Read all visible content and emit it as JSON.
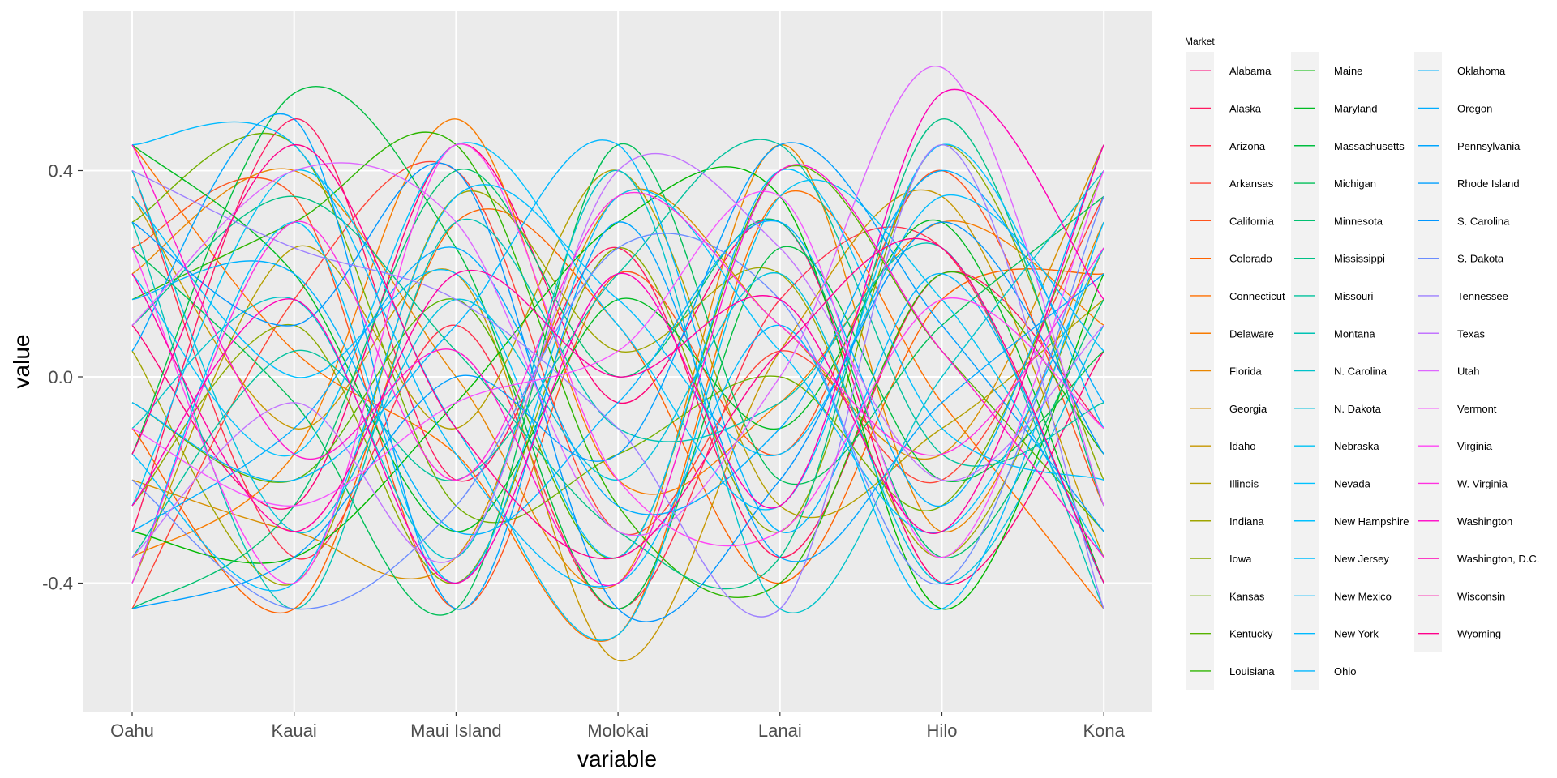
{
  "chart_data": {
    "type": "line",
    "xlabel": "variable",
    "ylabel": "value",
    "x_categories": [
      "Oahu",
      "Kauai",
      "Maui Island",
      "Molokai",
      "Lanai",
      "Hilo",
      "Kona"
    ],
    "y_ticks": [
      -0.4,
      0.0,
      0.4
    ],
    "y_tick_labels": [
      "-0.4",
      "0.0",
      "0.4"
    ],
    "ylim": [
      -0.6,
      0.72
    ],
    "grid": true,
    "smooth": true,
    "legend": {
      "title": "Market",
      "position": "right",
      "columns": 3
    },
    "series": [
      {
        "name": "Alabama",
        "values": [
          0.1,
          -0.25,
          0.45,
          -0.05,
          0.3,
          -0.4,
          0.05
        ]
      },
      {
        "name": "Alaska",
        "values": [
          -0.3,
          0.5,
          -0.2,
          0.25,
          -0.35,
          0.2,
          -0.1
        ]
      },
      {
        "name": "Arizona",
        "values": [
          0.4,
          -0.35,
          0.1,
          -0.45,
          0.15,
          0.25,
          -0.4
        ]
      },
      {
        "name": "Arkansas",
        "values": [
          -0.45,
          0.15,
          0.4,
          -0.3,
          0.05,
          -0.2,
          0.35
        ]
      },
      {
        "name": "California",
        "values": [
          0.25,
          0.35,
          -0.45,
          0.2,
          -0.15,
          0.4,
          -0.25
        ]
      },
      {
        "name": "Colorado",
        "values": [
          -0.1,
          -0.45,
          0.3,
          0.1,
          -0.4,
          0.15,
          0.2
        ]
      },
      {
        "name": "Connecticut",
        "values": [
          0.45,
          0.05,
          -0.15,
          -0.5,
          0.35,
          -0.05,
          -0.45
        ]
      },
      {
        "name": "Delaware",
        "values": [
          -0.35,
          -0.15,
          0.5,
          -0.2,
          -0.05,
          0.3,
          0.1
        ]
      },
      {
        "name": "Florida",
        "values": [
          0.2,
          0.4,
          0.0,
          -0.4,
          0.45,
          -0.3,
          0.3
        ]
      },
      {
        "name": "Georgia",
        "values": [
          -0.2,
          -0.3,
          -0.35,
          0.35,
          0.1,
          -0.15,
          0.45
        ]
      },
      {
        "name": "Idaho",
        "values": [
          0.35,
          -0.1,
          0.2,
          -0.55,
          0.05,
          0.35,
          -0.35
        ]
      },
      {
        "name": "Illinois",
        "values": [
          -0.4,
          0.25,
          -0.1,
          0.4,
          -0.25,
          -0.1,
          0.15
        ]
      },
      {
        "name": "Indiana",
        "values": [
          0.05,
          -0.4,
          0.35,
          0.05,
          0.2,
          -0.35,
          0.25
        ]
      },
      {
        "name": "Iowa",
        "values": [
          -0.25,
          0.1,
          -0.4,
          0.25,
          -0.3,
          0.45,
          -0.2
        ]
      },
      {
        "name": "Kansas",
        "values": [
          0.3,
          0.45,
          -0.25,
          -0.15,
          0.0,
          -0.25,
          0.4
        ]
      },
      {
        "name": "Kentucky",
        "values": [
          -0.05,
          -0.2,
          0.15,
          -0.35,
          0.4,
          0.05,
          -0.3
        ]
      },
      {
        "name": "Louisiana",
        "values": [
          0.15,
          0.3,
          0.45,
          -0.25,
          -0.4,
          0.2,
          -0.15
        ]
      },
      {
        "name": "Maine",
        "values": [
          -0.3,
          -0.35,
          -0.05,
          0.3,
          0.35,
          -0.45,
          0.2
        ]
      },
      {
        "name": "Maryland",
        "values": [
          0.45,
          0.2,
          -0.3,
          0.15,
          -0.1,
          0.3,
          -0.4
        ]
      },
      {
        "name": "Massachusetts",
        "values": [
          -0.15,
          0.55,
          0.25,
          -0.45,
          0.25,
          -0.2,
          0.05
        ]
      },
      {
        "name": "Michigan",
        "values": [
          0.25,
          -0.05,
          -0.45,
          0.45,
          -0.2,
          0.1,
          0.35
        ]
      },
      {
        "name": "Minnesota",
        "values": [
          -0.45,
          -0.25,
          0.4,
          0.0,
          0.3,
          -0.35,
          0.15
        ]
      },
      {
        "name": "Mississippi",
        "values": [
          0.1,
          0.35,
          0.05,
          -0.3,
          -0.35,
          0.5,
          -0.25
        ]
      },
      {
        "name": "Missouri",
        "values": [
          -0.35,
          0.05,
          -0.2,
          0.2,
          0.45,
          -0.15,
          -0.05
        ]
      },
      {
        "name": "Montana",
        "values": [
          0.3,
          -0.45,
          0.3,
          -0.1,
          -0.05,
          0.25,
          -0.45
        ]
      },
      {
        "name": "N. Carolina",
        "values": [
          -0.1,
          0.15,
          -0.35,
          0.4,
          -0.45,
          0.0,
          0.4
        ]
      },
      {
        "name": "N. Dakota",
        "values": [
          0.4,
          -0.3,
          0.15,
          -0.2,
          0.2,
          -0.4,
          0.1
        ]
      },
      {
        "name": "Nebraska",
        "values": [
          -0.25,
          0.4,
          -0.1,
          -0.5,
          0.35,
          0.15,
          -0.35
        ]
      },
      {
        "name": "Nevada",
        "values": [
          0.2,
          -0.15,
          0.45,
          0.1,
          -0.25,
          0.45,
          -0.1
        ]
      },
      {
        "name": "New Hampshire",
        "values": [
          -0.4,
          0.3,
          -0.4,
          0.35,
          0.05,
          -0.3,
          0.25
        ]
      },
      {
        "name": "New Jersey",
        "values": [
          0.35,
          0.0,
          0.2,
          -0.35,
          0.4,
          -0.1,
          -0.2
        ]
      },
      {
        "name": "New Mexico",
        "values": [
          -0.15,
          -0.4,
          0.35,
          0.15,
          -0.15,
          0.35,
          0.05
        ]
      },
      {
        "name": "New York",
        "values": [
          0.45,
          0.45,
          -0.15,
          -0.4,
          0.1,
          -0.45,
          0.3
        ]
      },
      {
        "name": "Ohio",
        "values": [
          -0.05,
          -0.2,
          0.1,
          0.45,
          -0.3,
          0.2,
          -0.4
        ]
      },
      {
        "name": "Oklahoma",
        "values": [
          0.15,
          0.2,
          -0.3,
          -0.05,
          0.3,
          -0.25,
          0.45
        ]
      },
      {
        "name": "Oregon",
        "values": [
          -0.3,
          -0.1,
          0.25,
          -0.25,
          -0.1,
          0.4,
          -0.05
        ]
      },
      {
        "name": "Pennsylvania",
        "values": [
          0.05,
          0.5,
          -0.45,
          0.3,
          -0.35,
          -0.05,
          0.2
        ]
      },
      {
        "name": "Rhode Island",
        "values": [
          -0.45,
          -0.35,
          0.0,
          -0.15,
          0.45,
          0.1,
          -0.3
        ]
      },
      {
        "name": "S. Carolina",
        "values": [
          0.3,
          0.1,
          0.4,
          -0.45,
          -0.2,
          0.3,
          -0.15
        ]
      },
      {
        "name": "S. Dakota",
        "values": [
          -0.2,
          -0.45,
          -0.25,
          0.25,
          0.15,
          -0.4,
          0.35
        ]
      },
      {
        "name": "Tennessee",
        "values": [
          0.4,
          0.25,
          0.15,
          -0.1,
          -0.45,
          0.45,
          -0.45
        ]
      },
      {
        "name": "Texas",
        "values": [
          -0.35,
          -0.05,
          -0.35,
          0.4,
          0.25,
          -0.2,
          0.1
        ]
      },
      {
        "name": "Utah",
        "values": [
          0.1,
          0.4,
          0.3,
          -0.3,
          0.0,
          0.6,
          -0.25
        ]
      },
      {
        "name": "Vermont",
        "values": [
          -0.1,
          -0.25,
          -0.05,
          0.05,
          0.35,
          -0.35,
          0.4
        ]
      },
      {
        "name": "Virginia",
        "values": [
          0.25,
          -0.4,
          0.45,
          -0.2,
          -0.3,
          0.15,
          -0.1
        ]
      },
      {
        "name": "W. Virginia",
        "values": [
          -0.4,
          0.3,
          -0.2,
          0.35,
          0.1,
          -0.15,
          0.25
        ]
      },
      {
        "name": "Washington",
        "values": [
          0.45,
          -0.15,
          0.05,
          -0.4,
          0.4,
          0.05,
          -0.35
        ]
      },
      {
        "name": "Washington, D.C.",
        "values": [
          -0.25,
          0.15,
          -0.4,
          0.2,
          -0.25,
          0.55,
          0.15
        ]
      },
      {
        "name": "Wisconsin",
        "values": [
          0.2,
          -0.3,
          0.2,
          0.0,
          0.15,
          -0.3,
          0.45
        ]
      },
      {
        "name": "Wyoming",
        "values": [
          -0.15,
          0.45,
          -0.1,
          -0.35,
          0.05,
          0.25,
          -0.4
        ]
      }
    ]
  }
}
